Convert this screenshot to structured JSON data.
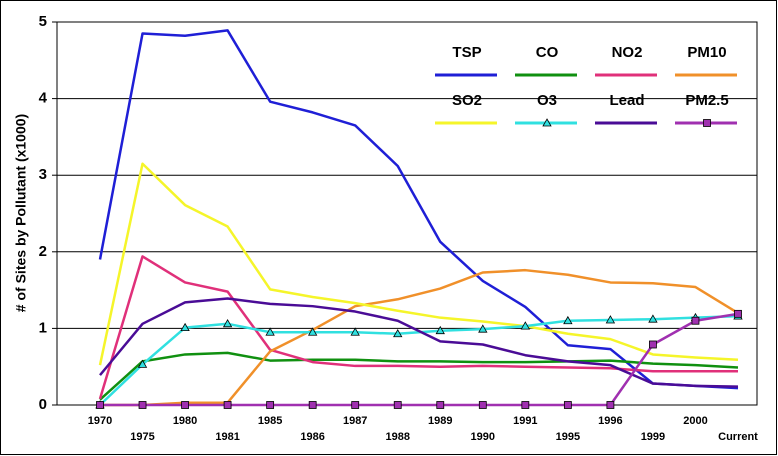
{
  "chart_data": {
    "type": "line",
    "y_label": "# of Sites by Pollutant (x1000)",
    "categories": [
      "1970",
      "1975",
      "1980",
      "1981",
      "1985",
      "1986",
      "1987",
      "1988",
      "1989",
      "1990",
      "1991",
      "1995",
      "1996",
      "1999",
      "2000",
      "Current"
    ],
    "ylim": [
      0,
      5
    ],
    "yticks": [
      0,
      1,
      2,
      3,
      4,
      5
    ],
    "grid": true,
    "legend": "upper right",
    "series": [
      {
        "name": "TSP",
        "color": "#1f1fd6",
        "values": [
          1.9,
          4.85,
          4.82,
          4.89,
          3.96,
          3.82,
          3.65,
          3.12,
          2.13,
          1.62,
          1.28,
          0.78,
          0.73,
          0.28,
          0.25,
          0.22
        ]
      },
      {
        "name": "CO",
        "color": "#109010",
        "values": [
          0.07,
          0.57,
          0.66,
          0.68,
          0.58,
          0.59,
          0.59,
          0.57,
          0.57,
          0.56,
          0.56,
          0.57,
          0.58,
          0.54,
          0.52,
          0.49
        ]
      },
      {
        "name": "NO2",
        "color": "#e0307a",
        "values": [
          0.08,
          1.94,
          1.6,
          1.48,
          0.72,
          0.56,
          0.51,
          0.51,
          0.5,
          0.51,
          0.5,
          0.49,
          0.48,
          0.44,
          0.44,
          0.44
        ]
      },
      {
        "name": "PM10",
        "color": "#f0902a",
        "values": [
          0,
          0,
          0.03,
          0.03,
          0.7,
          0.98,
          1.29,
          1.38,
          1.52,
          1.73,
          1.76,
          1.7,
          1.6,
          1.59,
          1.54,
          1.2
        ]
      },
      {
        "name": "SO2",
        "color": "#f5f52a",
        "values": [
          0.52,
          3.15,
          2.61,
          2.33,
          1.51,
          1.41,
          1.33,
          1.23,
          1.14,
          1.09,
          1.03,
          0.93,
          0.86,
          0.66,
          0.62,
          0.59
        ]
      },
      {
        "name": "O3",
        "color": "#30e0e0",
        "marker": "triangle",
        "values": [
          0,
          0.53,
          1.01,
          1.06,
          0.95,
          0.95,
          0.95,
          0.93,
          0.97,
          0.99,
          1.03,
          1.1,
          1.11,
          1.12,
          1.14,
          1.16
        ]
      },
      {
        "name": "Lead",
        "color": "#4a0c96",
        "values": [
          0.39,
          1.06,
          1.34,
          1.39,
          1.32,
          1.29,
          1.22,
          1.1,
          0.83,
          0.79,
          0.65,
          0.57,
          0.52,
          0.28,
          0.25,
          0.24
        ]
      },
      {
        "name": "PM2.5",
        "color": "#a030b0",
        "marker": "square",
        "values": [
          0,
          0,
          0,
          0,
          0,
          0,
          0,
          0,
          0,
          0,
          0,
          0,
          0,
          0.79,
          1.1,
          1.19
        ]
      }
    ]
  }
}
